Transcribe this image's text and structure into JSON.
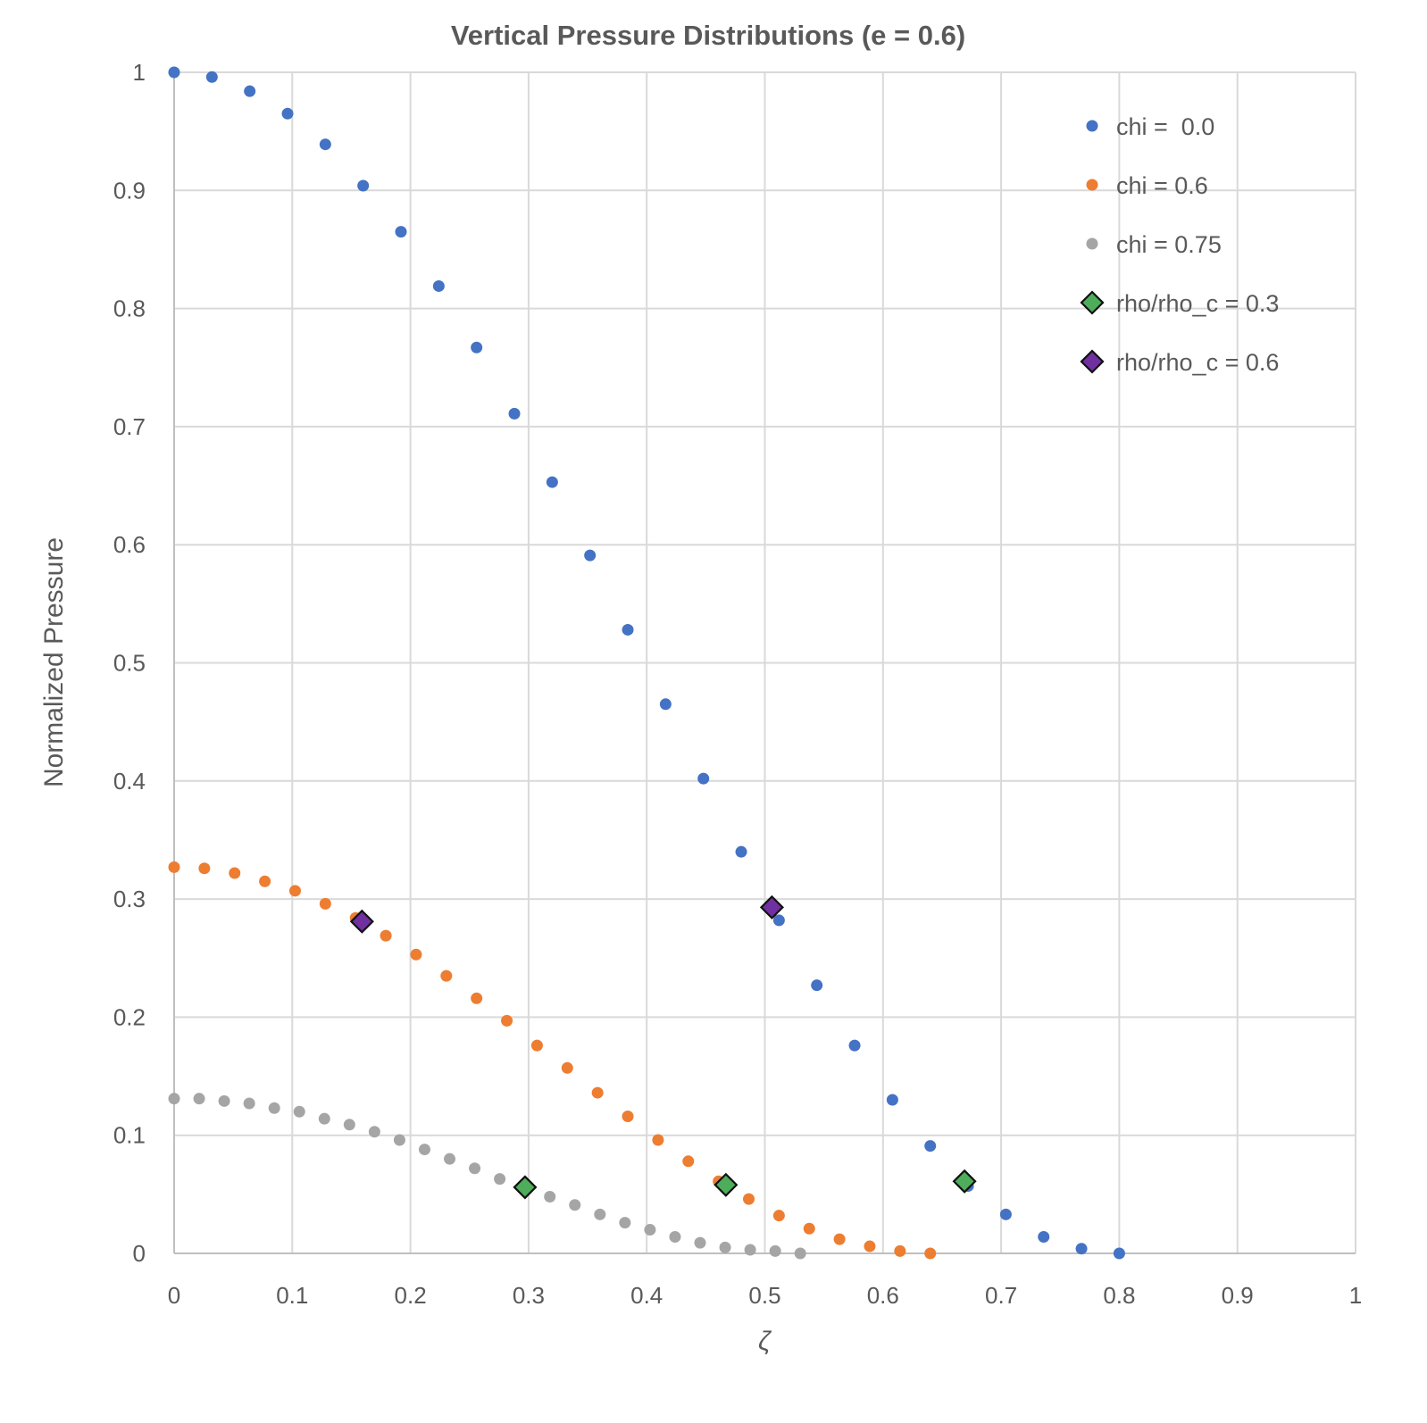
{
  "chart_data": {
    "type": "scatter",
    "title": "Vertical Pressure Distributions (e = 0.6)",
    "xlabel": "ζ",
    "ylabel": "Normalized Pressure",
    "xlim": [
      0,
      1
    ],
    "ylim": [
      0,
      1
    ],
    "x_ticks": [
      0,
      0.1,
      0.2,
      0.3,
      0.4,
      0.5,
      0.6,
      0.7,
      0.8,
      0.9,
      1
    ],
    "x_tick_labels": [
      "0",
      "0.1",
      "0.2",
      "0.3",
      "0.4",
      "0.5",
      "0.6",
      "0.7",
      "0.8",
      "0.9",
      "1"
    ],
    "y_ticks": [
      0,
      0.1,
      0.2,
      0.3,
      0.4,
      0.5,
      0.6,
      0.7,
      0.8,
      0.9,
      1
    ],
    "y_tick_labels": [
      "0",
      "0.1",
      "0.2",
      "0.3",
      "0.4",
      "0.5",
      "0.6",
      "0.7",
      "0.8",
      "0.9",
      "1"
    ],
    "grid": true,
    "legend_position": "top-right",
    "series": [
      {
        "name": "chi =  0.0",
        "marker": "circle",
        "color": "#4472c4",
        "x": [
          0,
          0.032,
          0.064,
          0.096,
          0.128,
          0.16,
          0.192,
          0.224,
          0.256,
          0.288,
          0.32,
          0.352,
          0.384,
          0.416,
          0.448,
          0.48,
          0.512,
          0.544,
          0.576,
          0.608,
          0.64,
          0.672,
          0.704,
          0.736,
          0.768,
          0.8
        ],
        "y": [
          1.0,
          0.996,
          0.984,
          0.965,
          0.939,
          0.904,
          0.865,
          0.819,
          0.767,
          0.711,
          0.653,
          0.591,
          0.528,
          0.465,
          0.402,
          0.34,
          0.282,
          0.227,
          0.176,
          0.13,
          0.091,
          0.057,
          0.033,
          0.014,
          0.004,
          0.0
        ]
      },
      {
        "name": "chi = 0.6",
        "marker": "circle",
        "color": "#ed7d31",
        "x": [
          0,
          0.0256,
          0.0512,
          0.0768,
          0.1024,
          0.128,
          0.1536,
          0.1792,
          0.2048,
          0.2304,
          0.256,
          0.2816,
          0.3072,
          0.3328,
          0.3584,
          0.384,
          0.4096,
          0.4352,
          0.4608,
          0.4864,
          0.512,
          0.5376,
          0.5632,
          0.5888,
          0.6144,
          0.64
        ],
        "y": [
          0.327,
          0.326,
          0.322,
          0.315,
          0.307,
          0.296,
          0.284,
          0.269,
          0.253,
          0.235,
          0.216,
          0.197,
          0.176,
          0.157,
          0.136,
          0.116,
          0.096,
          0.078,
          0.061,
          0.046,
          0.032,
          0.021,
          0.012,
          0.006,
          0.002,
          0.0
        ]
      },
      {
        "name": "chi = 0.75",
        "marker": "circle",
        "color": "#a5a5a5",
        "x": [
          0,
          0.0212,
          0.0424,
          0.0636,
          0.0848,
          0.106,
          0.1272,
          0.1484,
          0.1696,
          0.1908,
          0.212,
          0.2332,
          0.2544,
          0.2756,
          0.2968,
          0.318,
          0.3392,
          0.3604,
          0.3816,
          0.4028,
          0.424,
          0.4452,
          0.4664,
          0.4876,
          0.5088,
          0.53
        ],
        "y": [
          0.131,
          0.131,
          0.129,
          0.127,
          0.123,
          0.12,
          0.114,
          0.109,
          0.103,
          0.096,
          0.088,
          0.08,
          0.072,
          0.063,
          0.055,
          0.048,
          0.041,
          0.033,
          0.026,
          0.02,
          0.014,
          0.009,
          0.005,
          0.003,
          0.002,
          0.0
        ]
      },
      {
        "name": "rho/rho_c = 0.3",
        "marker": "diamond",
        "color": "#4ead5b",
        "x": [
          0.297,
          0.467,
          0.669
        ],
        "y": [
          0.056,
          0.058,
          0.061
        ]
      },
      {
        "name": "rho/rho_c = 0.6",
        "marker": "diamond",
        "color": "#7030a0",
        "x": [
          0.159,
          0.506
        ],
        "y": [
          0.281,
          0.293
        ]
      }
    ]
  }
}
